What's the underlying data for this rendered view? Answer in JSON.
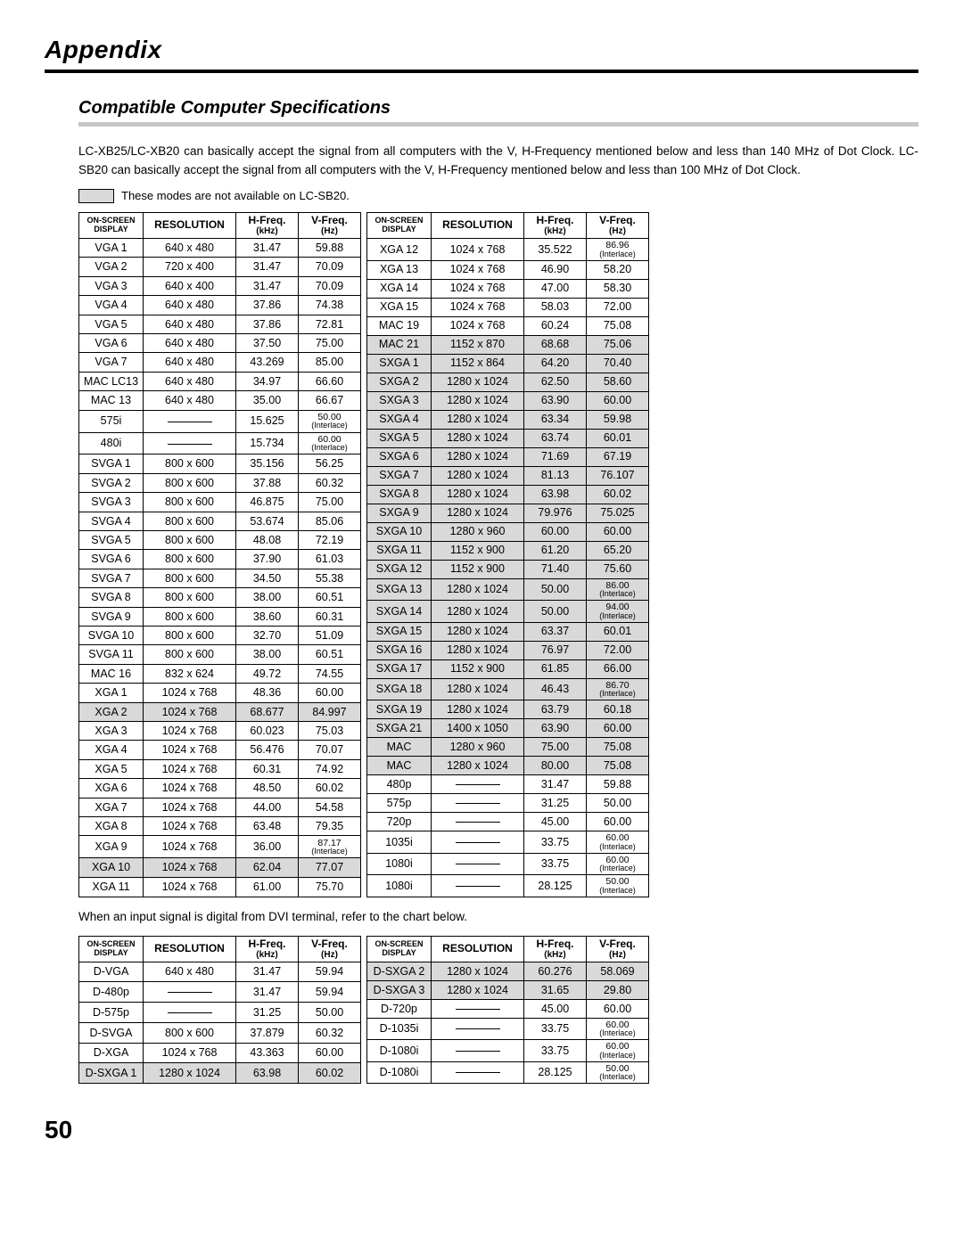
{
  "page": {
    "appendix_title": "Appendix",
    "section_title": "Compatible Computer Specifications",
    "intro_text": "LC-XB25/LC-XB20 can basically accept the signal from all computers with the V, H-Frequency mentioned below and less than 140 MHz of Dot Clock.  LC-SB20 can basically accept the signal from all computers with the V, H-Frequency mentioned below and less than 100 MHz of Dot Clock.",
    "note_text": "These modes are not available on LC-SB20.",
    "between_text": "When an input signal is digital from DVI terminal, refer to the chart below.",
    "page_number": "50"
  },
  "headers": {
    "osd_l1": "ON-SCREEN",
    "osd_l2": "DISPLAY",
    "res": "RESOLUTION",
    "hf_l1": "H-Freq.",
    "hf_l2": "(kHz)",
    "vf_l1": "V-Freq.",
    "vf_l2": "(Hz)"
  },
  "colors": {
    "shaded_bg": "#d9d9d9",
    "rule_grey": "#c6c6c6"
  },
  "table1_left": [
    {
      "osd": "VGA 1",
      "res": "640 x 480",
      "hf": "31.47",
      "vf": "59.88"
    },
    {
      "osd": "VGA 2",
      "res": "720 x 400",
      "hf": "31.47",
      "vf": "70.09"
    },
    {
      "osd": "VGA 3",
      "res": "640 x 400",
      "hf": "31.47",
      "vf": "70.09"
    },
    {
      "osd": "VGA 4",
      "res": "640 x 480",
      "hf": "37.86",
      "vf": "74.38"
    },
    {
      "osd": "VGA 5",
      "res": "640 x 480",
      "hf": "37.86",
      "vf": "72.81"
    },
    {
      "osd": "VGA 6",
      "res": "640 x 480",
      "hf": "37.50",
      "vf": "75.00"
    },
    {
      "osd": "VGA 7",
      "res": "640 x 480",
      "hf": "43.269",
      "vf": "85.00"
    },
    {
      "osd": "MAC LC13",
      "res": "640 x 480",
      "hf": "34.97",
      "vf": "66.60"
    },
    {
      "osd": "MAC 13",
      "res": "640 x 480",
      "hf": "35.00",
      "vf": "66.67"
    },
    {
      "osd": "575i",
      "res": "—",
      "hf": "15.625",
      "vf": "50.00",
      "vf_interlace": true
    },
    {
      "osd": "480i",
      "res": "—",
      "hf": "15.734",
      "vf": "60.00",
      "vf_interlace": true
    },
    {
      "osd": "SVGA 1",
      "res": "800 x 600",
      "hf": "35.156",
      "vf": "56.25"
    },
    {
      "osd": "SVGA 2",
      "res": "800 x 600",
      "hf": "37.88",
      "vf": "60.32"
    },
    {
      "osd": "SVGA 3",
      "res": "800 x 600",
      "hf": "46.875",
      "vf": "75.00"
    },
    {
      "osd": "SVGA 4",
      "res": "800 x 600",
      "hf": "53.674",
      "vf": "85.06"
    },
    {
      "osd": "SVGA 5",
      "res": "800 x 600",
      "hf": "48.08",
      "vf": "72.19"
    },
    {
      "osd": "SVGA 6",
      "res": "800 x 600",
      "hf": "37.90",
      "vf": "61.03"
    },
    {
      "osd": "SVGA 7",
      "res": "800 x 600",
      "hf": "34.50",
      "vf": "55.38"
    },
    {
      "osd": "SVGA 8",
      "res": "800 x 600",
      "hf": "38.00",
      "vf": "60.51"
    },
    {
      "osd": "SVGA 9",
      "res": "800 x 600",
      "hf": "38.60",
      "vf": "60.31"
    },
    {
      "osd": "SVGA 10",
      "res": "800 x 600",
      "hf": "32.70",
      "vf": "51.09"
    },
    {
      "osd": "SVGA 11",
      "res": "800 x 600",
      "hf": "38.00",
      "vf": "60.51"
    },
    {
      "osd": "MAC 16",
      "res": "832 x 624",
      "hf": "49.72",
      "vf": "74.55"
    },
    {
      "osd": "XGA 1",
      "res": "1024 x 768",
      "hf": "48.36",
      "vf": "60.00"
    },
    {
      "osd": "XGA 2",
      "res": "1024 x 768",
      "hf": "68.677",
      "vf": "84.997",
      "shaded": true
    },
    {
      "osd": "XGA 3",
      "res": "1024 x 768",
      "hf": "60.023",
      "vf": "75.03"
    },
    {
      "osd": "XGA 4",
      "res": "1024 x 768",
      "hf": "56.476",
      "vf": "70.07"
    },
    {
      "osd": "XGA 5",
      "res": "1024 x 768",
      "hf": "60.31",
      "vf": "74.92"
    },
    {
      "osd": "XGA 6",
      "res": "1024 x 768",
      "hf": "48.50",
      "vf": "60.02"
    },
    {
      "osd": "XGA 7",
      "res": "1024 x 768",
      "hf": "44.00",
      "vf": "54.58"
    },
    {
      "osd": "XGA 8",
      "res": "1024 x 768",
      "hf": "63.48",
      "vf": "79.35"
    },
    {
      "osd": "XGA 9",
      "res": "1024 x 768",
      "hf": "36.00",
      "vf": "87.17",
      "vf_interlace": true
    },
    {
      "osd": "XGA 10",
      "res": "1024 x 768",
      "hf": "62.04",
      "vf": "77.07",
      "shaded": true
    },
    {
      "osd": "XGA 11",
      "res": "1024 x 768",
      "hf": "61.00",
      "vf": "75.70"
    }
  ],
  "table1_right": [
    {
      "osd": "XGA 12",
      "res": "1024 x 768",
      "hf": "35.522",
      "vf": "86.96",
      "vf_interlace": true
    },
    {
      "osd": "XGA 13",
      "res": "1024 x 768",
      "hf": "46.90",
      "vf": "58.20"
    },
    {
      "osd": "XGA 14",
      "res": "1024 x 768",
      "hf": "47.00",
      "vf": "58.30"
    },
    {
      "osd": "XGA 15",
      "res": "1024 x 768",
      "hf": "58.03",
      "vf": "72.00"
    },
    {
      "osd": "MAC 19",
      "res": "1024 x 768",
      "hf": "60.24",
      "vf": "75.08"
    },
    {
      "osd": "MAC 21",
      "res": "1152 x 870",
      "hf": "68.68",
      "vf": "75.06",
      "shaded": true
    },
    {
      "osd": "SXGA 1",
      "res": "1152 x 864",
      "hf": "64.20",
      "vf": "70.40",
      "shaded": true
    },
    {
      "osd": "SXGA 2",
      "res": "1280 x 1024",
      "hf": "62.50",
      "vf": "58.60",
      "shaded": true
    },
    {
      "osd": "SXGA 3",
      "res": "1280 x 1024",
      "hf": "63.90",
      "vf": "60.00",
      "shaded": true
    },
    {
      "osd": "SXGA 4",
      "res": "1280 x 1024",
      "hf": "63.34",
      "vf": "59.98",
      "shaded": true
    },
    {
      "osd": "SXGA 5",
      "res": "1280 x 1024",
      "hf": "63.74",
      "vf": "60.01",
      "shaded": true
    },
    {
      "osd": "SXGA 6",
      "res": "1280 x 1024",
      "hf": "71.69",
      "vf": "67.19",
      "shaded": true
    },
    {
      "osd": "SXGA 7",
      "res": "1280 x 1024",
      "hf": "81.13",
      "vf": "76.107",
      "shaded": true
    },
    {
      "osd": "SXGA 8",
      "res": "1280 x 1024",
      "hf": "63.98",
      "vf": "60.02",
      "shaded": true
    },
    {
      "osd": "SXGA 9",
      "res": "1280 x 1024",
      "hf": "79.976",
      "vf": "75.025",
      "shaded": true
    },
    {
      "osd": "SXGA 10",
      "res": "1280 x 960",
      "hf": "60.00",
      "vf": "60.00",
      "shaded": true
    },
    {
      "osd": "SXGA 11",
      "res": "1152 x 900",
      "hf": "61.20",
      "vf": "65.20",
      "shaded": true
    },
    {
      "osd": "SXGA 12",
      "res": "1152 x 900",
      "hf": "71.40",
      "vf": "75.60",
      "shaded": true
    },
    {
      "osd": "SXGA 13",
      "res": "1280 x 1024",
      "hf": "50.00",
      "vf": "86.00",
      "vf_interlace": true,
      "shaded": true
    },
    {
      "osd": "SXGA 14",
      "res": "1280 x 1024",
      "hf": "50.00",
      "vf": "94.00",
      "vf_interlace": true,
      "shaded": true
    },
    {
      "osd": "SXGA 15",
      "res": "1280 x 1024",
      "hf": "63.37",
      "vf": "60.01",
      "shaded": true
    },
    {
      "osd": "SXGA 16",
      "res": "1280 x 1024",
      "hf": "76.97",
      "vf": "72.00",
      "shaded": true
    },
    {
      "osd": "SXGA 17",
      "res": "1152 x 900",
      "hf": "61.85",
      "vf": "66.00",
      "shaded": true
    },
    {
      "osd": "SXGA 18",
      "res": "1280 x 1024",
      "hf": "46.43",
      "vf": "86.70",
      "vf_interlace": true,
      "shaded": true
    },
    {
      "osd": "SXGA 19",
      "res": "1280 x 1024",
      "hf": "63.79",
      "vf": "60.18",
      "shaded": true
    },
    {
      "osd": "SXGA 21",
      "res": "1400 x 1050",
      "hf": "63.90",
      "vf": "60.00",
      "shaded": true
    },
    {
      "osd": "MAC",
      "res": "1280 x 960",
      "hf": "75.00",
      "vf": "75.08",
      "shaded": true
    },
    {
      "osd": "MAC",
      "res": "1280 x 1024",
      "hf": "80.00",
      "vf": "75.08",
      "shaded": true
    },
    {
      "osd": "480p",
      "res": "—",
      "hf": "31.47",
      "vf": "59.88"
    },
    {
      "osd": "575p",
      "res": "—",
      "hf": "31.25",
      "vf": "50.00"
    },
    {
      "osd": "720p",
      "res": "—",
      "hf": "45.00",
      "vf": "60.00"
    },
    {
      "osd": "1035i",
      "res": "—",
      "hf": "33.75",
      "vf": "60.00",
      "vf_interlace": true
    },
    {
      "osd": "1080i",
      "res": "—",
      "hf": "33.75",
      "vf": "60.00",
      "vf_interlace": true
    },
    {
      "osd": "1080i",
      "res": "—",
      "hf": "28.125",
      "vf": "50.00",
      "vf_interlace": true
    }
  ],
  "table2_left": [
    {
      "osd": "D-VGA",
      "res": "640 x 480",
      "hf": "31.47",
      "vf": "59.94"
    },
    {
      "osd": "D-480p",
      "res": "—",
      "hf": "31.47",
      "vf": "59.94"
    },
    {
      "osd": "D-575p",
      "res": "—",
      "hf": "31.25",
      "vf": "50.00"
    },
    {
      "osd": "D-SVGA",
      "res": "800 x 600",
      "hf": "37.879",
      "vf": "60.32"
    },
    {
      "osd": "D-XGA",
      "res": "1024 x 768",
      "hf": "43.363",
      "vf": "60.00"
    },
    {
      "osd": "D-SXGA 1",
      "res": "1280 x 1024",
      "hf": "63.98",
      "vf": "60.02",
      "shaded": true
    }
  ],
  "table2_right": [
    {
      "osd": "D-SXGA 2",
      "res": "1280 x 1024",
      "hf": "60.276",
      "vf": "58.069",
      "shaded": true
    },
    {
      "osd": "D-SXGA 3",
      "res": "1280 x 1024",
      "hf": "31.65",
      "vf": "29.80",
      "shaded": true
    },
    {
      "osd": "D-720p",
      "res": "—",
      "hf": "45.00",
      "vf": "60.00"
    },
    {
      "osd": "D-1035i",
      "res": "—",
      "hf": "33.75",
      "vf": "60.00",
      "vf_interlace": true
    },
    {
      "osd": "D-1080i",
      "res": "—",
      "hf": "33.75",
      "vf": "60.00",
      "vf_interlace": true
    },
    {
      "osd": "D-1080i",
      "res": "—",
      "hf": "28.125",
      "vf": "50.00",
      "vf_interlace": true
    }
  ]
}
